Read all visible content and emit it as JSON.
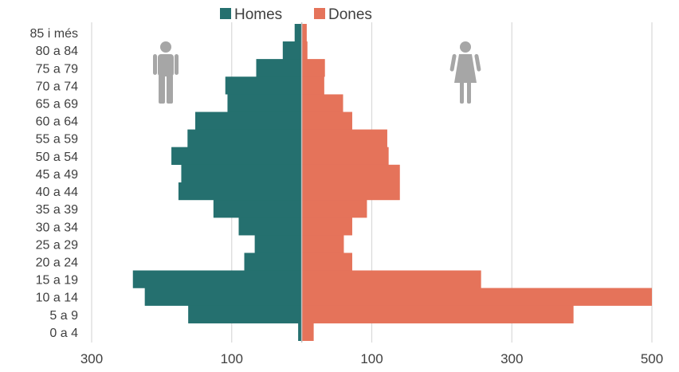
{
  "chart_data": {
    "type": "bar",
    "orientation": "population-pyramid",
    "categories": [
      "0 a 4",
      "5 a 9",
      "10 a 14",
      "15 a 19",
      "20 a 24",
      "25 a 29",
      "30 a 34",
      "35 a 39",
      "40 a 44",
      "45 a 49",
      "50 a 54",
      "55 a 59",
      "60 a 64",
      "65 a 69",
      "70 a 74",
      "75 a 79",
      "80 a 84",
      "85 i més"
    ],
    "series": [
      {
        "name": "Homes",
        "side": "left",
        "color": "#25706f",
        "values": [
          5,
          162,
          224,
          241,
          82,
          67,
          90,
          126,
          176,
          172,
          186,
          163,
          152,
          106,
          109,
          65,
          27,
          10
        ]
      },
      {
        "name": "Dones",
        "side": "right",
        "color": "#e5735a",
        "values": [
          17,
          388,
          500,
          256,
          72,
          60,
          72,
          93,
          140,
          140,
          124,
          122,
          72,
          59,
          32,
          33,
          8,
          7
        ]
      }
    ],
    "xlim": [
      -300,
      500
    ],
    "x_tick_values": [
      -300,
      -100,
      100,
      300,
      500
    ],
    "x_tick_labels": [
      "300",
      "100",
      "100",
      "300",
      "500"
    ],
    "grid": true,
    "legend_position": "top",
    "icons": {
      "left": "male-icon",
      "right": "female-icon",
      "color": "#a6a6a6"
    }
  }
}
